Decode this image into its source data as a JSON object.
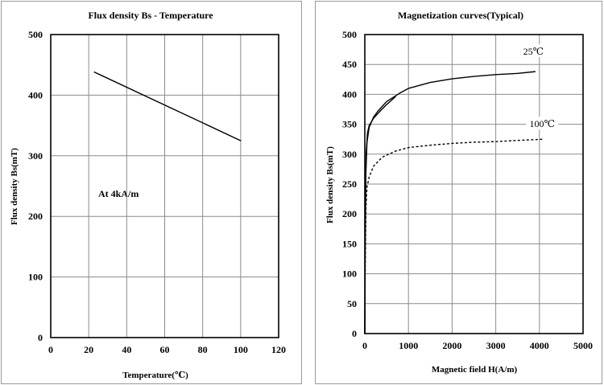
{
  "chart_data": [
    {
      "type": "line",
      "title": "Flux density Bs - Temperature",
      "xlabel": "Temperature(℃)",
      "ylabel": "Flux density Bs(mT)",
      "xlim": [
        0,
        120
      ],
      "ylim": [
        0,
        500
      ],
      "xticks": [
        0,
        20,
        40,
        60,
        80,
        100,
        120
      ],
      "yticks": [
        0,
        100,
        200,
        300,
        400,
        500
      ],
      "grid": true,
      "annotation": "At  4kA/m",
      "series": [
        {
          "x": [
            23,
            100
          ],
          "y": [
            438,
            325
          ],
          "style": "solid"
        }
      ]
    },
    {
      "type": "line",
      "title": "Magnetization curves(Typical)",
      "xlabel": "Magnetic field H(A/m)",
      "ylabel": "Flux density Bs(mT)",
      "xlim": [
        0,
        5000
      ],
      "ylim": [
        0,
        500
      ],
      "xticks": [
        0,
        1000,
        2000,
        3000,
        4000,
        5000
      ],
      "yticks": [
        0,
        50,
        100,
        150,
        200,
        250,
        300,
        350,
        400,
        450,
        500
      ],
      "grid": true,
      "series": [
        {
          "name": "25℃",
          "style": "solid",
          "x": [
            0,
            10,
            25,
            50,
            100,
            200,
            300,
            500,
            800,
            1000,
            1500,
            2000,
            2500,
            3000,
            3500,
            3900
          ],
          "y": [
            0,
            150,
            270,
            320,
            345,
            362,
            372,
            388,
            402,
            410,
            420,
            426,
            430,
            433,
            435,
            438
          ]
        },
        {
          "name": "25℃",
          "style": "solid",
          "x": [
            0,
            10,
            30,
            60,
            100,
            200,
            350,
            500,
            700
          ],
          "y": [
            0,
            200,
            300,
            335,
            348,
            360,
            372,
            383,
            396
          ]
        },
        {
          "name": "100℃",
          "style": "dashed",
          "x": [
            0,
            10,
            25,
            50,
            100,
            200,
            400,
            700,
            1000,
            1500,
            2000,
            2500,
            3000,
            3500,
            4100
          ],
          "y": [
            0,
            120,
            210,
            245,
            262,
            280,
            295,
            305,
            311,
            315,
            318,
            320,
            321,
            323,
            325
          ]
        }
      ]
    }
  ]
}
